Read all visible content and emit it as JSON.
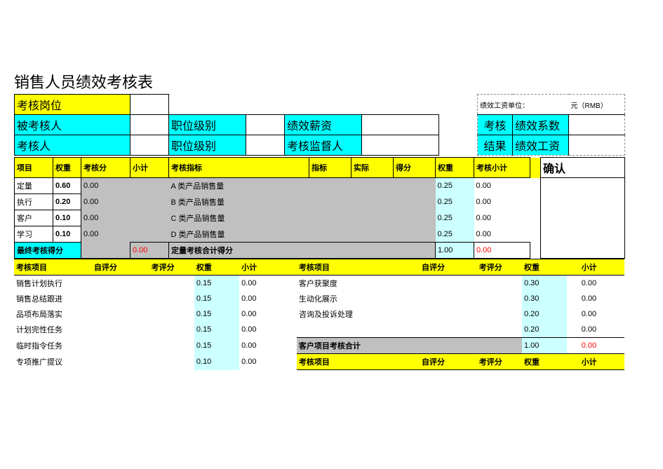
{
  "title": "销售人员绩效考核表",
  "unit_label": "绩效工资单位：",
  "unit_value": "元（RMB）",
  "hdr": {
    "position_label": "考核岗位",
    "assessed_label": "被考核人",
    "joblevel1_label": "职位级别",
    "salary_label": "绩效薪资",
    "result_label": "考核",
    "coef_label": "绩效系数",
    "assessor_label": "考核人",
    "joblevel2_label": "职位级别",
    "supervisor_label": "考核监督人",
    "result2_label": "结果",
    "wage_label": "绩效工资"
  },
  "cols1": {
    "c1": "项目",
    "c2": "权重",
    "c3": "考核分",
    "c4": "小计",
    "c5": "考核指标",
    "c6": "指标",
    "c7": "实际",
    "c8": "得分",
    "c9": "权重",
    "c10": "考核小计",
    "confirm": "确认"
  },
  "rows1": [
    {
      "name": "定量",
      "w": "0.60",
      "score": "0.00",
      "ind": "A 类产品销售量",
      "w2": "0.25",
      "sub": "0.00"
    },
    {
      "name": "执行",
      "w": "0.20",
      "score": "0.00",
      "ind": "B 类产品销售量",
      "w2": "0.25",
      "sub": "0.00"
    },
    {
      "name": "客户",
      "w": "0.10",
      "score": "0.00",
      "ind": "C 类产品销售量",
      "w2": "0.25",
      "sub": "0.00"
    },
    {
      "name": "学习",
      "w": "0.10",
      "score": "0.00",
      "ind": "D 类产品销售量",
      "w2": "0.25",
      "sub": "0.00"
    }
  ],
  "total1": {
    "label": "最终考核得分",
    "score": "0.00",
    "label2": "定量考核合计得分",
    "w2": "1.00",
    "sub": "0.00"
  },
  "cols2": {
    "c1": "考核项目",
    "c2": "自评分",
    "c3": "考评分",
    "c4": "权重",
    "c5": "小计",
    "c6": "考核项目",
    "c7": "自评分",
    "c8": "考评分",
    "c9": "权重",
    "c10": "小计"
  },
  "rows2": [
    {
      "l": "销售计划执行",
      "w": "0.15",
      "sub": "0.00",
      "r": "客户获聚度",
      "w2": "0.30",
      "sub2": "0.00"
    },
    {
      "l": "销售总结跟进",
      "w": "0.15",
      "sub": "0.00",
      "r": "生动化展示",
      "w2": "0.30",
      "sub2": "0.00"
    },
    {
      "l": "品项布局落实",
      "w": "0.15",
      "sub": "0.00",
      "r": "咨询及投诉处理",
      "w2": "0.20",
      "sub2": "0.00"
    },
    {
      "l": "计划完性任务",
      "w": "0.15",
      "sub": "0.00",
      "r": "",
      "w2": "0.20",
      "sub2": "0.00"
    },
    {
      "l": "临时指令任务",
      "w": "0.15",
      "sub": "0.00",
      "r": "客户项目考核合计",
      "w2": "1.00",
      "sub2": "0.00",
      "rtotal": true
    },
    {
      "l": "专项推广提议",
      "w": "0.10",
      "sub": "0.00",
      "r": "考核项目",
      "r2": "自评分",
      "r3": "考评分",
      "r4": "权重",
      "r5": "小计",
      "rhdr": true
    }
  ]
}
